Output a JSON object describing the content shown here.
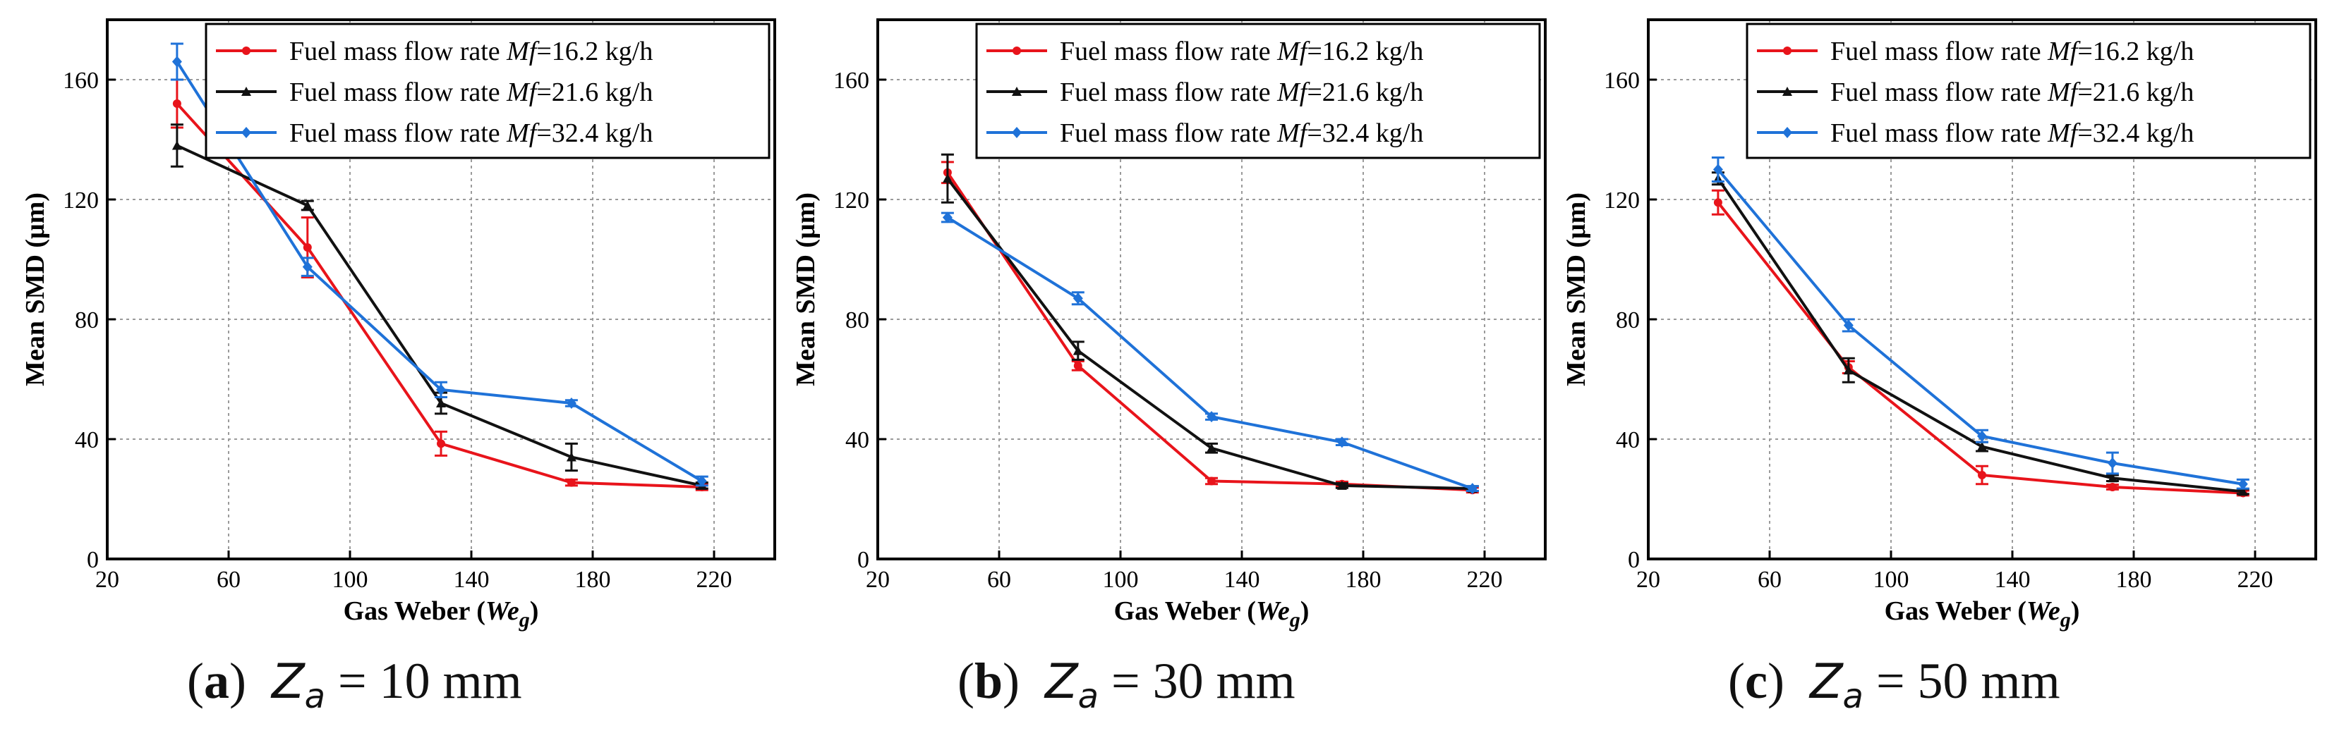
{
  "chart_data": [
    {
      "type": "line",
      "panel_label": "a",
      "caption": {
        "symbol": "Z",
        "subscript": "a",
        "value": "= 10 mm"
      },
      "xlabel": {
        "text": "Gas Weber (",
        "italic": "We",
        "sub": "g",
        "close": ")"
      },
      "ylabel": "Mean SMD (μm)",
      "xlim": [
        20,
        240
      ],
      "ylim": [
        0,
        180
      ],
      "xticks": [
        "20",
        "60",
        "100",
        "140",
        "180",
        "220"
      ],
      "yticks": [
        "0",
        "40",
        "80",
        "120",
        "160"
      ],
      "grid": true,
      "legend_position": "top-right",
      "x": [
        43,
        86,
        130,
        173,
        216
      ],
      "series": [
        {
          "name": "Fuel mass flow rate Mf=16.2 kg/h",
          "legend_prefix": "Fuel mass flow rate ",
          "legend_var": "Mf",
          "legend_suffix": "=16.2 kg/h",
          "color": "#e8141b",
          "marker": "circle",
          "values": [
            152,
            104,
            38.5,
            25.5,
            24
          ],
          "errors": [
            8,
            10,
            4,
            1,
            1
          ]
        },
        {
          "name": "Fuel mass flow rate Mf=21.6 kg/h",
          "legend_prefix": "Fuel mass flow rate ",
          "legend_var": "Mf",
          "legend_suffix": "=21.6 kg/h",
          "color": "#111111",
          "marker": "triangle",
          "values": [
            138,
            118,
            52,
            34,
            24.5
          ],
          "errors": [
            7,
            1.5,
            3.5,
            4.5,
            1
          ]
        },
        {
          "name": "Fuel mass flow rate Mf=32.4 kg/h",
          "legend_prefix": "Fuel mass flow rate ",
          "legend_var": "Mf",
          "legend_suffix": "=32.4 kg/h",
          "color": "#1f72d8",
          "marker": "diamond",
          "values": [
            166,
            97.5,
            56.5,
            52,
            26
          ],
          "errors": [
            6,
            3,
            2.5,
            1,
            1.5
          ]
        }
      ]
    },
    {
      "type": "line",
      "panel_label": "b",
      "caption": {
        "symbol": "Z",
        "subscript": "a",
        "value": "= 30 mm"
      },
      "xlabel": {
        "text": "Gas Weber (",
        "italic": "We",
        "sub": "g",
        "close": ")"
      },
      "ylabel": "Mean SMD (μm)",
      "xlim": [
        20,
        240
      ],
      "ylim": [
        0,
        180
      ],
      "xticks": [
        "20",
        "60",
        "100",
        "140",
        "180",
        "220"
      ],
      "yticks": [
        "0",
        "40",
        "80",
        "120",
        "160"
      ],
      "grid": true,
      "legend_position": "top-right",
      "x": [
        43,
        86,
        130,
        173,
        216
      ],
      "series": [
        {
          "name": "Fuel mass flow rate Mf=16.2 kg/h",
          "legend_prefix": "Fuel mass flow rate ",
          "legend_var": "Mf",
          "legend_suffix": "=16.2 kg/h",
          "color": "#e8141b",
          "marker": "circle",
          "values": [
            129,
            64.5,
            26,
            25,
            23
          ],
          "errors": [
            3.5,
            1.5,
            1,
            0.8,
            0.8
          ]
        },
        {
          "name": "Fuel mass flow rate Mf=21.6 kg/h",
          "legend_prefix": "Fuel mass flow rate ",
          "legend_var": "Mf",
          "legend_suffix": "=21.6 kg/h",
          "color": "#111111",
          "marker": "triangle",
          "values": [
            127,
            69.5,
            37,
            24.5,
            23.5
          ],
          "errors": [
            8,
            3,
            1.5,
            0.8,
            0.8
          ]
        },
        {
          "name": "Fuel mass flow rate Mf=32.4 kg/h",
          "legend_prefix": "Fuel mass flow rate ",
          "legend_var": "Mf",
          "legend_suffix": "=32.4 kg/h",
          "color": "#1f72d8",
          "marker": "diamond",
          "values": [
            114,
            87,
            47.5,
            39,
            23.5
          ],
          "errors": [
            1.5,
            2,
            1,
            1,
            0.8
          ]
        }
      ]
    },
    {
      "type": "line",
      "panel_label": "c",
      "caption": {
        "symbol": "Z",
        "subscript": "a",
        "value": "= 50 mm"
      },
      "xlabel": {
        "text": "Gas Weber (",
        "italic": "We",
        "sub": "g",
        "close": ")"
      },
      "ylabel": "Mean SMD (μm)",
      "xlim": [
        20,
        240
      ],
      "ylim": [
        0,
        180
      ],
      "xticks": [
        "20",
        "60",
        "100",
        "140",
        "180",
        "220"
      ],
      "yticks": [
        "0",
        "40",
        "80",
        "120",
        "160"
      ],
      "grid": true,
      "legend_position": "top-right",
      "x": [
        43,
        86,
        130,
        173,
        216
      ],
      "series": [
        {
          "name": "Fuel mass flow rate Mf=16.2 kg/h",
          "legend_prefix": "Fuel mass flow rate ",
          "legend_var": "Mf",
          "legend_suffix": "=16.2 kg/h",
          "color": "#e8141b",
          "marker": "circle",
          "values": [
            119,
            64,
            28,
            24,
            22
          ],
          "errors": [
            4,
            2,
            3,
            0.8,
            0.8
          ]
        },
        {
          "name": "Fuel mass flow rate Mf=21.6 kg/h",
          "legend_prefix": "Fuel mass flow rate ",
          "legend_var": "Mf",
          "legend_suffix": "=21.6 kg/h",
          "color": "#111111",
          "marker": "triangle",
          "values": [
            127,
            63,
            37.5,
            27,
            22.5
          ],
          "errors": [
            2,
            4,
            1.5,
            1,
            0.8
          ]
        },
        {
          "name": "Fuel mass flow rate Mf=32.4 kg/h",
          "legend_prefix": "Fuel mass flow rate ",
          "legend_var": "Mf",
          "legend_suffix": "=32.4 kg/h",
          "color": "#1f72d8",
          "marker": "diamond",
          "values": [
            130,
            78,
            41,
            32,
            25
          ],
          "errors": [
            4,
            2,
            2,
            3.5,
            1.5
          ]
        }
      ]
    }
  ]
}
